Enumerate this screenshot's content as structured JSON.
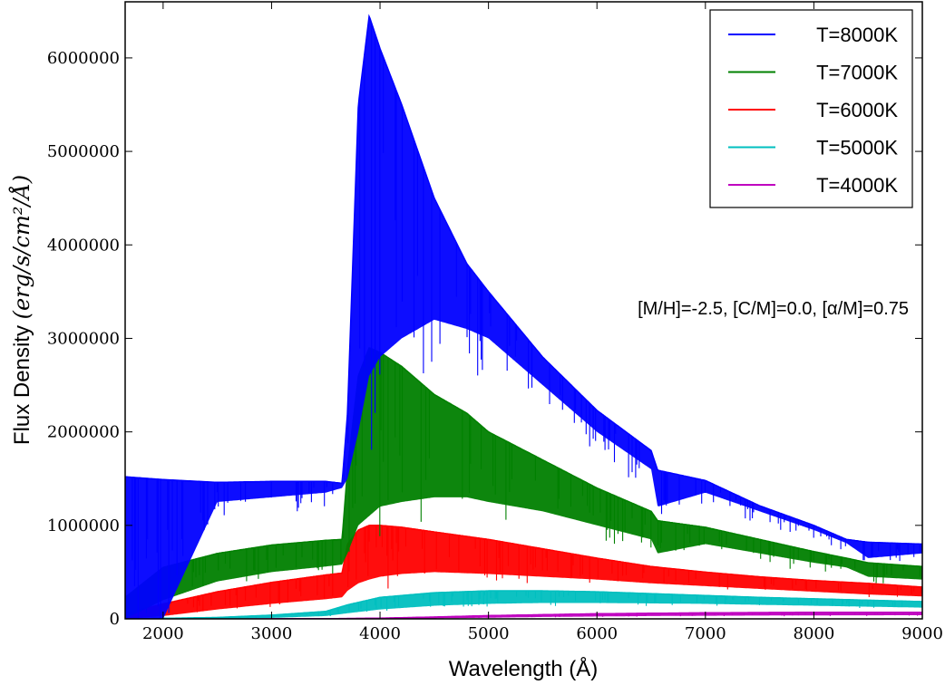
{
  "chart_data": {
    "type": "line",
    "title": "",
    "xlabel": "Wavelength (Å)",
    "ylabel_prefix": "Flux Density ",
    "ylabel_units": "(erg/s/cm²/Å)",
    "xlim": [
      1650,
      9000
    ],
    "ylim": [
      0,
      6600000
    ],
    "x_ticks": [
      2000,
      3000,
      4000,
      5000,
      6000,
      7000,
      8000,
      9000
    ],
    "y_ticks": [
      0,
      1000000,
      2000000,
      3000000,
      4000000,
      5000000,
      6000000
    ],
    "x_tick_labels": [
      "2000",
      "3000",
      "4000",
      "5000",
      "6000",
      "7000",
      "8000",
      "9000"
    ],
    "y_tick_labels": [
      "0",
      "1000000",
      "2000000",
      "3000000",
      "4000000",
      "5000000",
      "6000000"
    ],
    "grid": false,
    "legend_position": "top-right",
    "annotation": "[M/H]=-2.5, [C/M]=0.0, [α/M]=0.75",
    "series": [
      {
        "name": "T=8000K",
        "color": "#0000ff",
        "x": [
          1650,
          2000,
          2500,
          3000,
          3500,
          3650,
          3700,
          3800,
          3900,
          4000,
          4200,
          4500,
          4800,
          5000,
          5500,
          6000,
          6500,
          6560,
          7000,
          7500,
          8000,
          8300,
          8500,
          9000
        ],
        "upper": [
          1520000,
          1490000,
          1460000,
          1470000,
          1470000,
          1450000,
          2200000,
          5500000,
          6450000,
          6100000,
          5500000,
          4500000,
          3800000,
          3500000,
          2800000,
          2230000,
          1800000,
          1590000,
          1480000,
          1210000,
          1000000,
          850000,
          820000,
          800000
        ],
        "lower": [
          0,
          0,
          1250000,
          1300000,
          1350000,
          1400000,
          1500000,
          2000000,
          2600000,
          2800000,
          3000000,
          3200000,
          3100000,
          3000000,
          2500000,
          2000000,
          1600000,
          1200000,
          1350000,
          1150000,
          950000,
          810000,
          650000,
          700000
        ]
      },
      {
        "name": "T=7000K",
        "color": "#008000",
        "x": [
          1650,
          2000,
          2500,
          3000,
          3500,
          3650,
          3700,
          3800,
          3900,
          4000,
          4200,
          4500,
          4800,
          5000,
          5500,
          6000,
          6500,
          6560,
          7000,
          7500,
          8000,
          8300,
          8500,
          9000
        ],
        "upper": [
          230000,
          550000,
          700000,
          790000,
          840000,
          850000,
          1600000,
          2600000,
          2900000,
          2850000,
          2700000,
          2400000,
          2200000,
          2000000,
          1700000,
          1400000,
          1150000,
          1050000,
          980000,
          850000,
          720000,
          650000,
          600000,
          560000
        ],
        "lower": [
          0,
          200000,
          400000,
          500000,
          560000,
          580000,
          700000,
          1000000,
          1100000,
          1200000,
          1250000,
          1300000,
          1300000,
          1250000,
          1150000,
          1000000,
          850000,
          700000,
          800000,
          700000,
          600000,
          550000,
          450000,
          420000
        ]
      },
      {
        "name": "T=6000K",
        "color": "#ff0000",
        "x": [
          1650,
          2000,
          2500,
          3000,
          3500,
          3650,
          3700,
          3800,
          3900,
          4000,
          4200,
          4500,
          5000,
          5500,
          6000,
          6500,
          7000,
          7500,
          8000,
          8500,
          9000
        ],
        "upper": [
          60000,
          160000,
          290000,
          390000,
          470000,
          490000,
          800000,
          950000,
          1000000,
          1000000,
          980000,
          930000,
          850000,
          750000,
          650000,
          560000,
          500000,
          450000,
          410000,
          380000,
          340000
        ],
        "lower": [
          0,
          30000,
          100000,
          160000,
          210000,
          230000,
          300000,
          380000,
          420000,
          450000,
          480000,
          500000,
          480000,
          450000,
          420000,
          380000,
          350000,
          320000,
          290000,
          260000,
          240000
        ]
      },
      {
        "name": "T=5000K",
        "color": "#00bfbf",
        "x": [
          1650,
          2500,
          3000,
          3500,
          3700,
          4000,
          4500,
          5000,
          5500,
          6000,
          6500,
          7000,
          7500,
          8000,
          8500,
          9000
        ],
        "upper": [
          0,
          15000,
          40000,
          80000,
          150000,
          230000,
          280000,
          300000,
          300000,
          290000,
          270000,
          250000,
          230000,
          215000,
          200000,
          185000
        ],
        "lower": [
          0,
          0,
          10000,
          30000,
          60000,
          100000,
          140000,
          160000,
          170000,
          170000,
          165000,
          160000,
          150000,
          140000,
          130000,
          120000
        ]
      },
      {
        "name": "T=4000K",
        "color": "#bf00bf",
        "x": [
          1650,
          3500,
          4000,
          4500,
          5000,
          5500,
          6000,
          6500,
          7000,
          7500,
          8000,
          8500,
          9000
        ],
        "upper": [
          0,
          2000,
          8000,
          20000,
          35000,
          45000,
          55000,
          60000,
          65000,
          68000,
          70000,
          70000,
          70000
        ],
        "lower": [
          0,
          0,
          0,
          5000,
          12000,
          20000,
          25000,
          30000,
          33000,
          35000,
          37000,
          38000,
          39000
        ]
      }
    ]
  }
}
